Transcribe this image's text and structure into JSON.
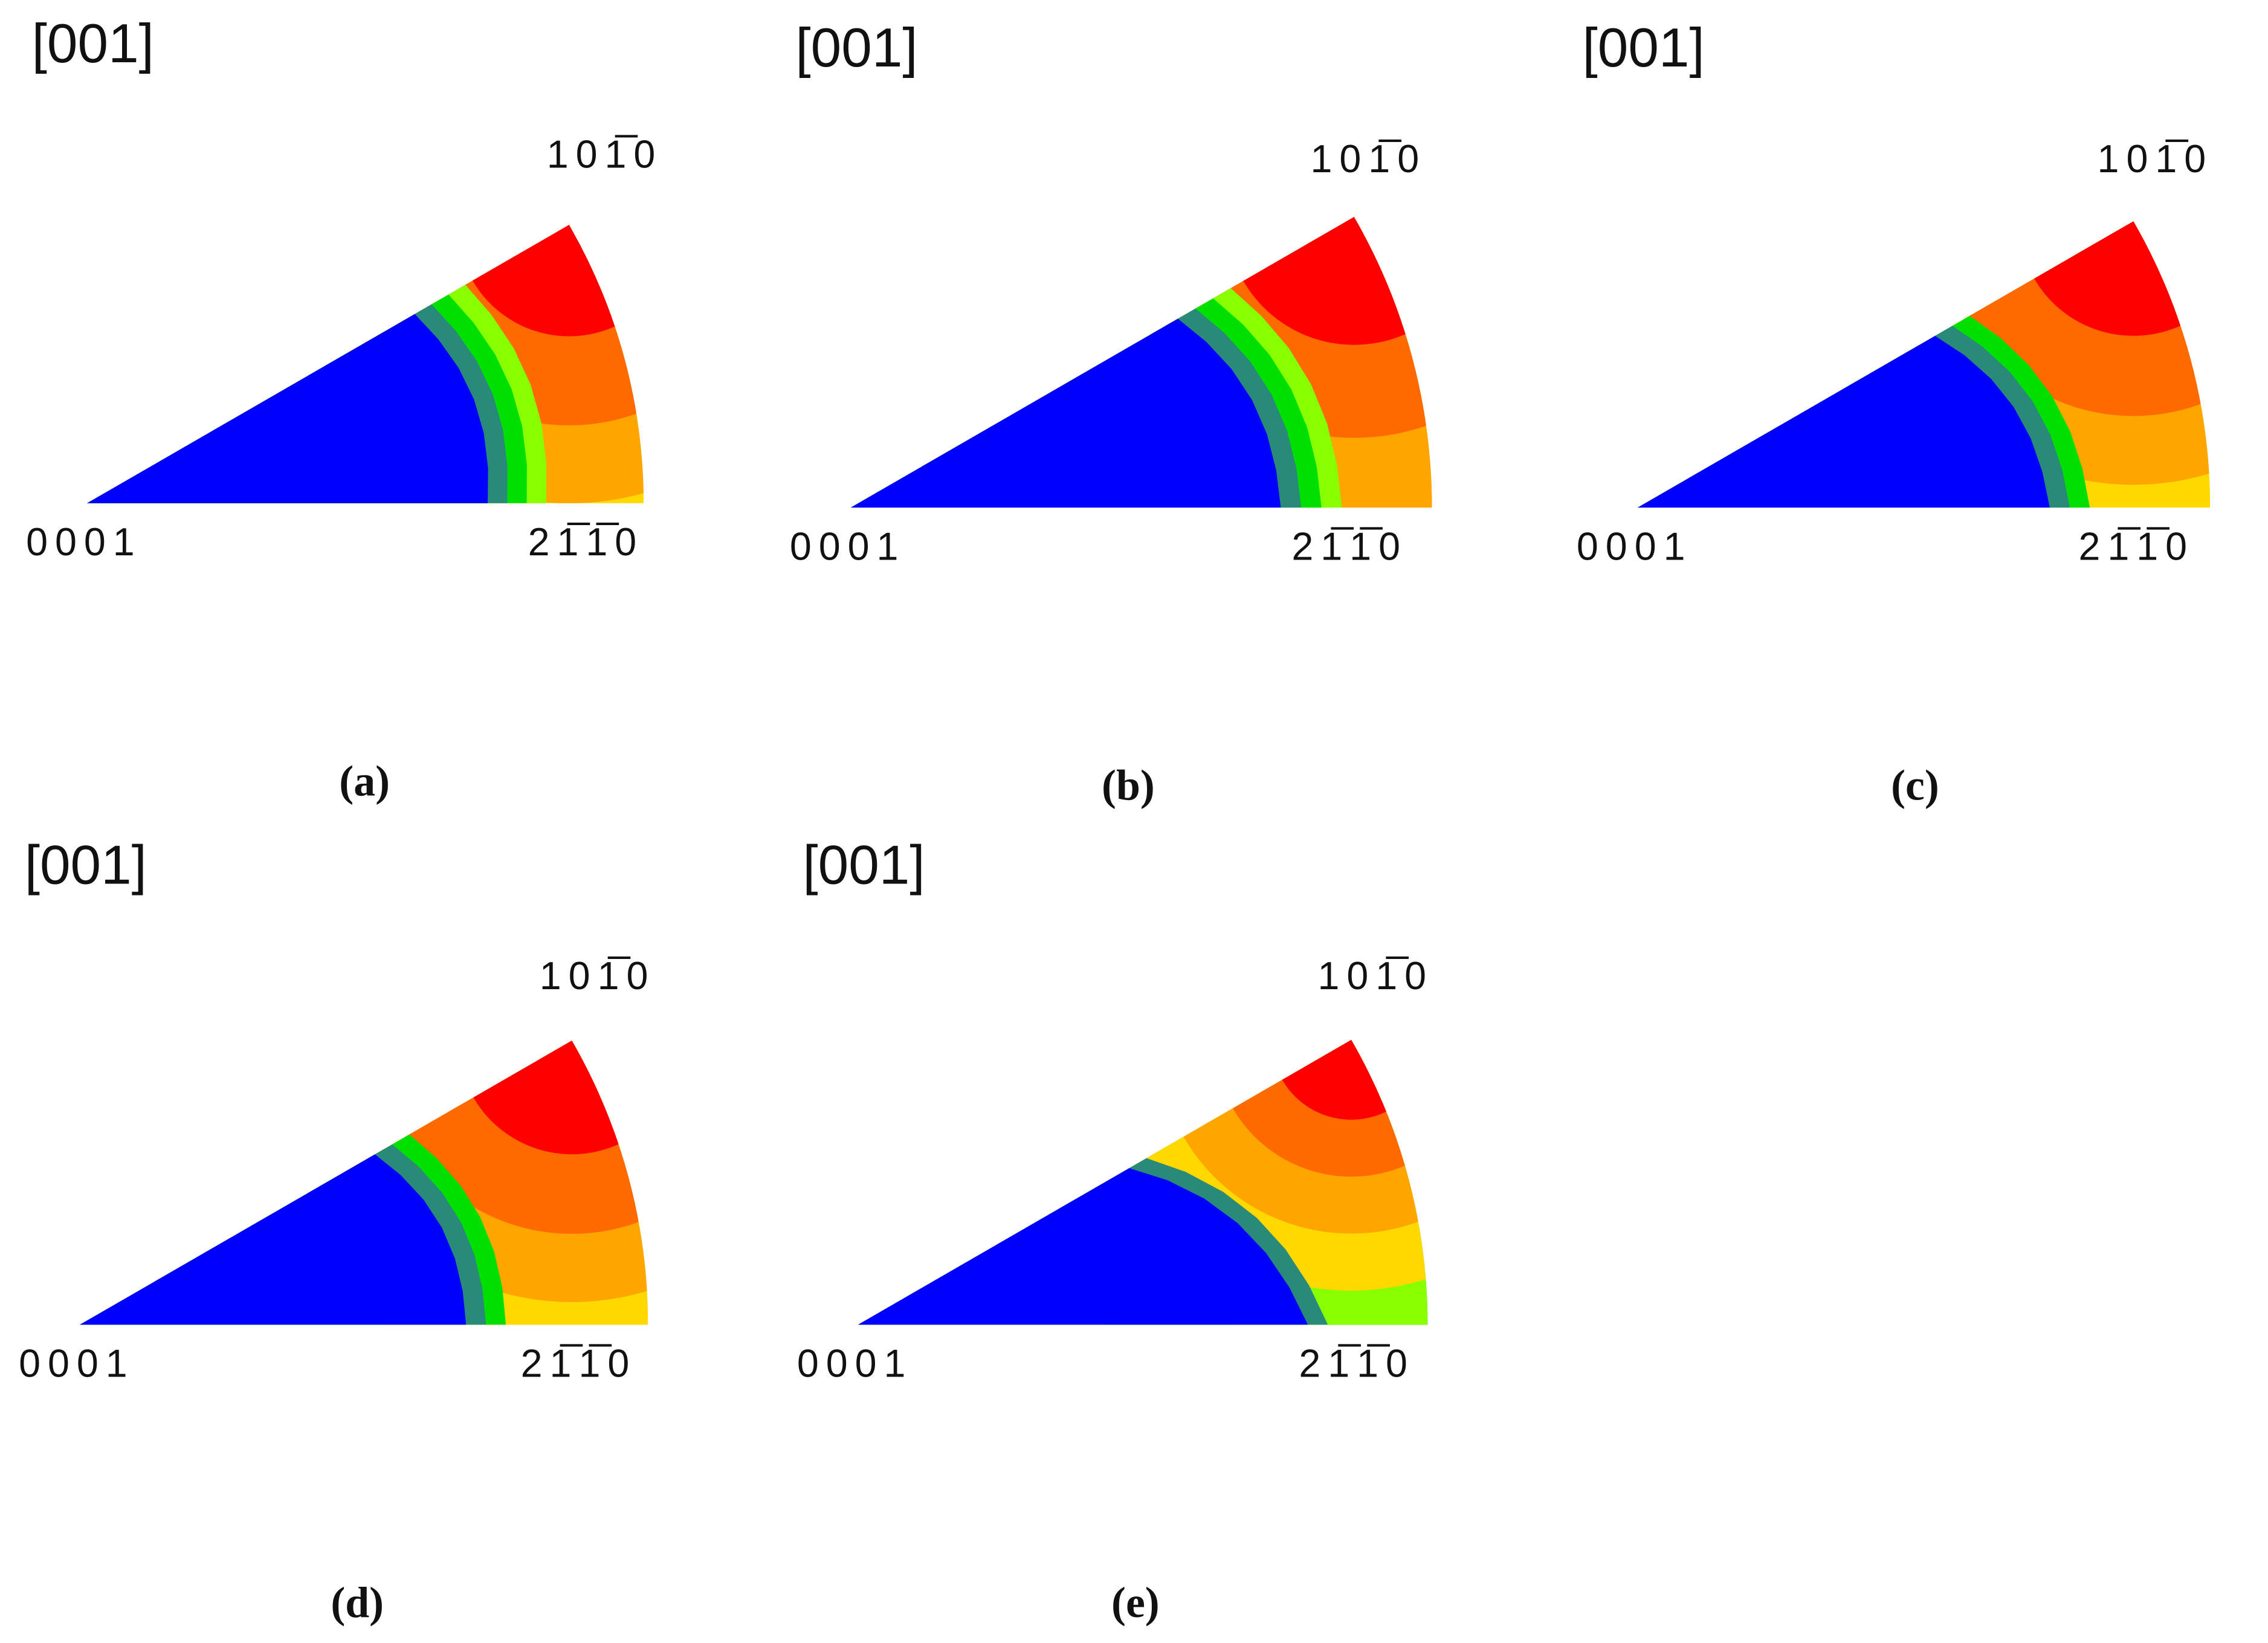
{
  "panels": [
    {
      "title": "[001]",
      "top_label": "101̅0",
      "left_label": "0001",
      "right_label": "21̅1̅0",
      "caption": "(a)"
    },
    {
      "title": "[001]",
      "top_label": "101̅0",
      "left_label": "0001",
      "right_label": "21̅1̅0",
      "caption": "(b)"
    },
    {
      "title": "[001]",
      "top_label": "101̅0",
      "left_label": "0001",
      "right_label": "21̅1̅0",
      "caption": "(c)"
    },
    {
      "title": "[001]",
      "top_label": "101̅0",
      "left_label": "0001",
      "right_label": "21̅1̅0",
      "caption": "(d)"
    },
    {
      "title": "[001]",
      "top_label": "101̅0",
      "left_label": "0001",
      "right_label": "21̅1̅0",
      "caption": "(e)"
    }
  ]
}
